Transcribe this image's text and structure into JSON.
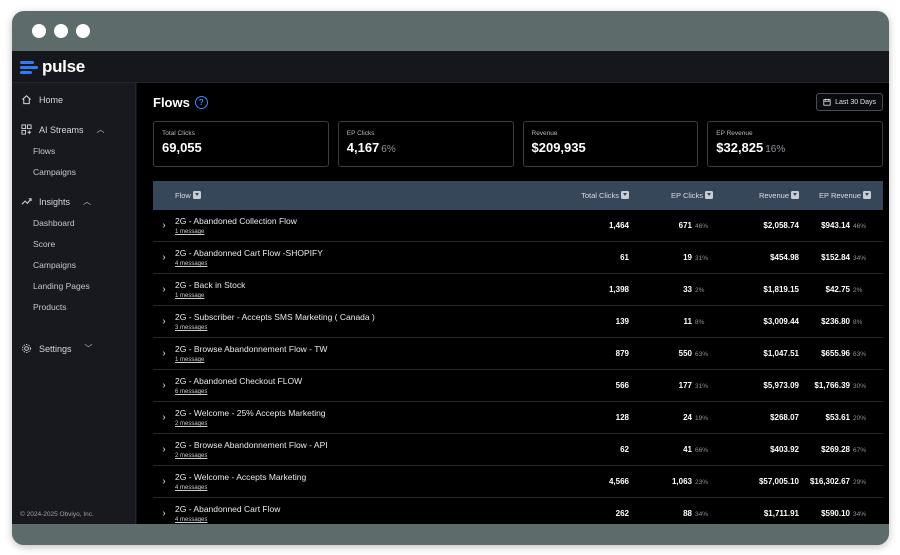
{
  "brand": {
    "name": "pulse",
    "color": "#2f7df6"
  },
  "sidebar": {
    "items": [
      {
        "label": "Home",
        "icon": "home-icon"
      },
      {
        "label": "AI Streams",
        "icon": "grid-icon",
        "children": [
          "Flows",
          "Campaigns"
        ]
      },
      {
        "label": "Insights",
        "icon": "trend-icon",
        "children": [
          "Dashboard",
          "Score",
          "Campaigns",
          "Landing Pages",
          "Products"
        ]
      },
      {
        "label": "Settings",
        "icon": "gear-icon"
      }
    ],
    "copyright": "© 2024-2025 Obviyo, Inc."
  },
  "header": {
    "title": "Flows",
    "help_icon": "?",
    "date_range": "Last 30 Days"
  },
  "cards": [
    {
      "label": "Total Clicks",
      "value": "69,055",
      "pct": ""
    },
    {
      "label": "EP Clicks",
      "value": "4,167",
      "pct": "6%"
    },
    {
      "label": "Revenue",
      "value": "$209,935",
      "pct": ""
    },
    {
      "label": "EP Revenue",
      "value": "$32,825",
      "pct": "16%"
    }
  ],
  "table": {
    "columns": [
      "Flow",
      "Total Clicks",
      "EP Clicks",
      "Revenue",
      "EP Revenue"
    ],
    "rows": [
      {
        "name": "2G - Abandoned Collection Flow",
        "messages": "1 message",
        "total": "1,464",
        "ep": "671",
        "ep_pct": "46%",
        "rev": "$2,058.74",
        "eprev": "$943.14",
        "eprev_pct": "46%"
      },
      {
        "name": "2G - Abandonned Cart Flow -SHOPIFY",
        "messages": "4 messages",
        "total": "61",
        "ep": "19",
        "ep_pct": "31%",
        "rev": "$454.98",
        "eprev": "$152.84",
        "eprev_pct": "34%"
      },
      {
        "name": "2G - Back in Stock",
        "messages": "1 message",
        "total": "1,398",
        "ep": "33",
        "ep_pct": "2%",
        "rev": "$1,819.15",
        "eprev": "$42.75",
        "eprev_pct": "2%"
      },
      {
        "name": "2G - Subscriber - Accepts SMS Marketing ( Canada )",
        "messages": "3 messages",
        "total": "139",
        "ep": "11",
        "ep_pct": "8%",
        "rev": "$3,009.44",
        "eprev": "$236.80",
        "eprev_pct": "8%"
      },
      {
        "name": "2G - Browse Abandonnement Flow - TW",
        "messages": "1 message",
        "total": "879",
        "ep": "550",
        "ep_pct": "63%",
        "rev": "$1,047.51",
        "eprev": "$655.96",
        "eprev_pct": "63%"
      },
      {
        "name": "2G - Abandoned Checkout FLOW",
        "messages": "6 messages",
        "total": "566",
        "ep": "177",
        "ep_pct": "31%",
        "rev": "$5,973.09",
        "eprev": "$1,766.39",
        "eprev_pct": "30%"
      },
      {
        "name": "2G - Welcome - 25% Accepts Marketing",
        "messages": "2 messages",
        "total": "128",
        "ep": "24",
        "ep_pct": "19%",
        "rev": "$268.07",
        "eprev": "$53.61",
        "eprev_pct": "20%"
      },
      {
        "name": "2G - Browse Abandonnement Flow - API",
        "messages": "2 messages",
        "total": "62",
        "ep": "41",
        "ep_pct": "66%",
        "rev": "$403.92",
        "eprev": "$269.28",
        "eprev_pct": "67%"
      },
      {
        "name": "2G - Welcome - Accepts Marketing",
        "messages": "4 messages",
        "total": "4,566",
        "ep": "1,063",
        "ep_pct": "23%",
        "rev": "$57,005.10",
        "eprev": "$16,302.67",
        "eprev_pct": "29%"
      },
      {
        "name": "2G - Abandonned Cart Flow",
        "messages": "4 messages",
        "total": "262",
        "ep": "88",
        "ep_pct": "34%",
        "rev": "$1,711.91",
        "eprev": "$590.10",
        "eprev_pct": "34%"
      }
    ]
  }
}
